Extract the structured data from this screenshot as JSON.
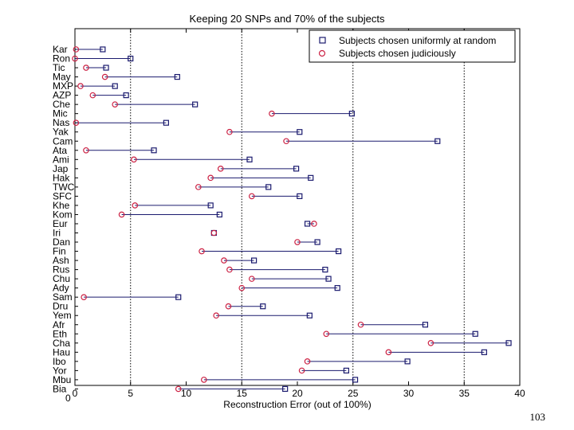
{
  "page": {
    "page_number": "103"
  },
  "chart_data": {
    "type": "scatter",
    "title": "Keeping 20 SNPs and 70% of the subjects",
    "xlabel": "Reconstruction Error (out of 100%)",
    "ylabel": "",
    "xlim": [
      0,
      40
    ],
    "xticks": [
      0,
      5,
      10,
      15,
      20,
      25,
      30,
      35,
      40
    ],
    "vlines": [
      5,
      15,
      25,
      35
    ],
    "grid": false,
    "legend_position": "top-right",
    "categories": [
      "Kar",
      "Ron",
      "Tic",
      "May",
      "MXP",
      "AZP",
      "Che",
      "Mic",
      "Nas",
      "Yak",
      "Cam",
      "Ata",
      "Ami",
      "Jap",
      "Hak",
      "TWC",
      "SFC",
      "Khe",
      "Kom",
      "Eur",
      "Iri",
      "Dan",
      "Fin",
      "Ash",
      "Rus",
      "Chu",
      "Ady",
      "Sam",
      "Dru",
      "Yem",
      "Afr",
      "Eth",
      "Cha",
      "Hau",
      "Ibo",
      "Yor",
      "Mbu",
      "Bia"
    ],
    "extra_tick_label": "0",
    "series": [
      {
        "name": "Subjects chosen uniformly at random",
        "marker": "square",
        "color": "#1a1a6e",
        "values": [
          2.5,
          5.0,
          2.8,
          9.2,
          3.6,
          4.6,
          10.8,
          24.9,
          8.2,
          20.2,
          32.6,
          7.1,
          15.7,
          19.9,
          21.2,
          17.4,
          20.2,
          12.2,
          13.0,
          20.9,
          12.5,
          21.8,
          23.7,
          16.1,
          22.5,
          22.8,
          23.6,
          9.3,
          16.9,
          21.1,
          31.5,
          36.0,
          39.0,
          36.8,
          29.9,
          24.4,
          25.2,
          18.9
        ]
      },
      {
        "name": "Subjects chosen judiciously",
        "marker": "circle",
        "color": "#cc2244",
        "values": [
          0.1,
          0.0,
          1.0,
          2.7,
          0.5,
          1.6,
          3.6,
          17.7,
          0.1,
          13.9,
          19.0,
          1.0,
          5.3,
          13.1,
          12.2,
          11.1,
          15.9,
          5.4,
          4.2,
          21.5,
          12.5,
          20.0,
          11.4,
          13.4,
          13.9,
          15.9,
          15.0,
          0.8,
          13.8,
          12.7,
          25.7,
          22.6,
          32.0,
          28.2,
          20.9,
          20.4,
          11.6,
          9.3
        ]
      }
    ]
  }
}
